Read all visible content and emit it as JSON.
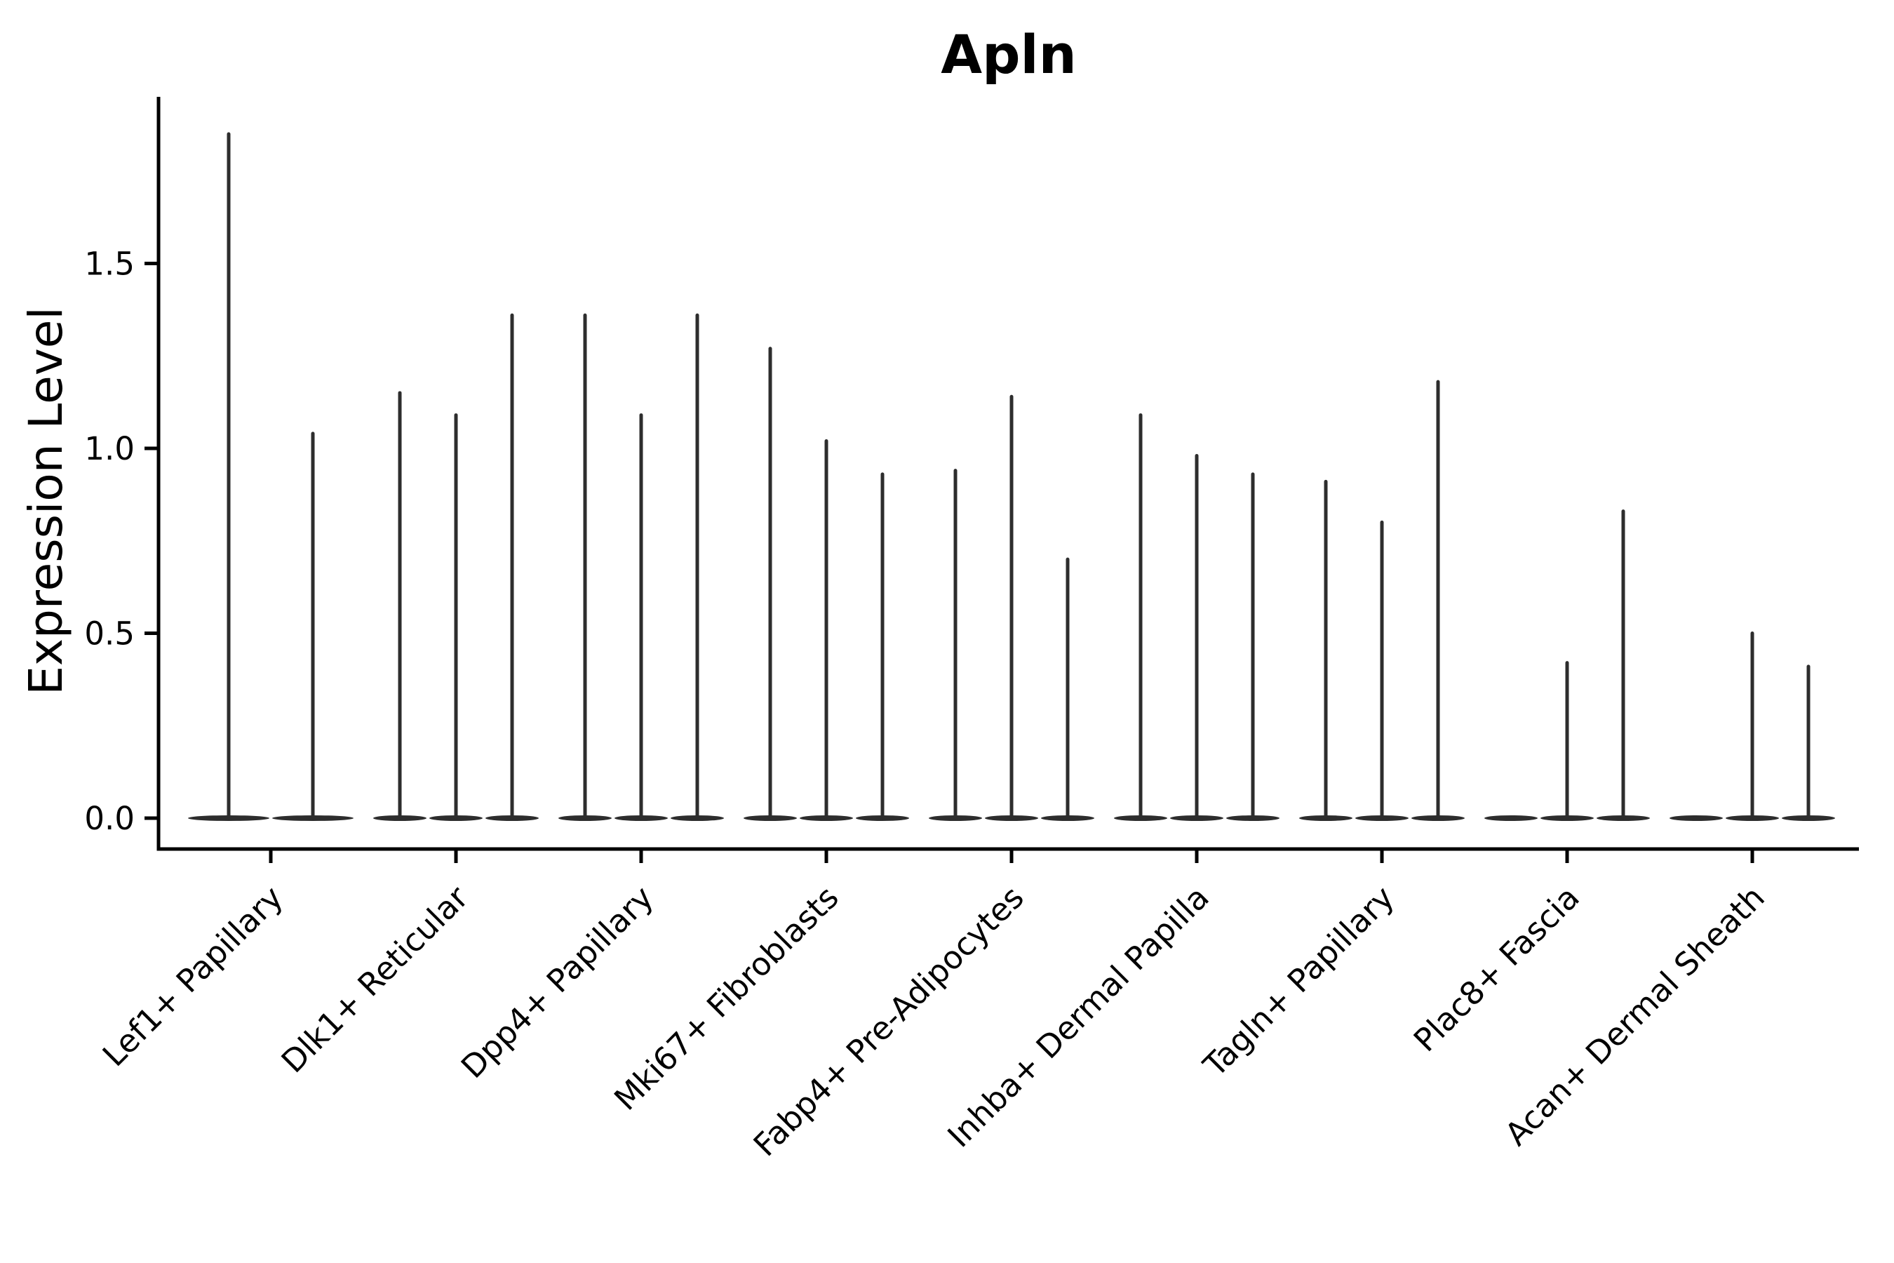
{
  "chart_data": {
    "type": "violin",
    "title": "Apln",
    "ylabel": "Expression Level",
    "xlabel": "",
    "yticks": [
      0.0,
      0.5,
      1.0,
      1.5
    ],
    "ytick_labels": [
      "0.0",
      "0.5",
      "1.0",
      "1.5"
    ],
    "ylim": [
      -0.08,
      1.95
    ],
    "grid": false,
    "legend": null,
    "style_note": "Monochrome needle violins: each violin is a wide flat lens at y=0 with a thin vertical spike up to its max expression value; max of 0 means a flat violin with no spike.",
    "categories": [
      "Lef1+ Papillary",
      "Dlk1+ Reticular",
      "Dpp4+ Papillary",
      "Mki67+ Fibroblasts",
      "Fabp4+ Pre-Adipocytes",
      "Inhba+ Dermal Papilla",
      "Tagln+ Papillary",
      "Plac8+ Fascia",
      "Acan+ Dermal Sheath"
    ],
    "series": [
      {
        "category": "Lef1+ Papillary",
        "violin_maxima": [
          1.85,
          1.04
        ]
      },
      {
        "category": "Dlk1+ Reticular",
        "violin_maxima": [
          1.15,
          1.09,
          1.36
        ]
      },
      {
        "category": "Dpp4+ Papillary",
        "violin_maxima": [
          1.36,
          1.09,
          1.36
        ]
      },
      {
        "category": "Mki67+ Fibroblasts",
        "violin_maxima": [
          1.27,
          1.02,
          0.93
        ]
      },
      {
        "category": "Fabp4+ Pre-Adipocytes",
        "violin_maxima": [
          0.94,
          1.14,
          0.7
        ]
      },
      {
        "category": "Inhba+ Dermal Papilla",
        "violin_maxima": [
          1.09,
          0.98,
          0.93
        ]
      },
      {
        "category": "Tagln+ Papillary",
        "violin_maxima": [
          0.91,
          0.8,
          1.18
        ]
      },
      {
        "category": "Plac8+ Fascia",
        "violin_maxima": [
          0.0,
          0.42,
          0.83
        ]
      },
      {
        "category": "Acan+ Dermal Sheath",
        "violin_maxima": [
          0.0,
          0.5,
          0.41
        ]
      }
    ],
    "colors": {
      "violin": "#2d2d2d",
      "axis": "#000000",
      "text": "#000000",
      "background": "#ffffff"
    }
  }
}
